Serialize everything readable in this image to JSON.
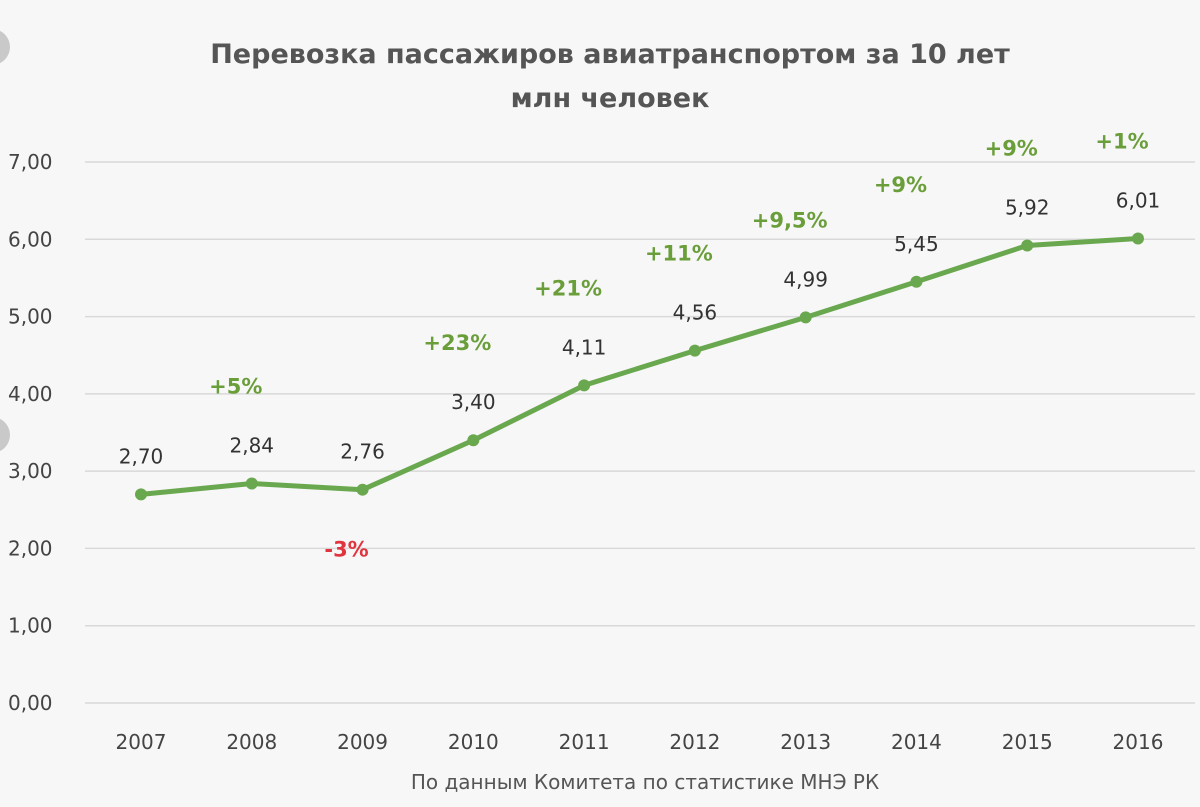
{
  "chart_data": {
    "type": "line",
    "title": "Перевозка пассажиров авиатранспортом за 10 лет",
    "subtitle": "млн человек",
    "xlabel": "",
    "ylabel": "",
    "source": "По данным Комитета по статистике МНЭ РК",
    "categories": [
      "2007",
      "2008",
      "2009",
      "2010",
      "2011",
      "2012",
      "2013",
      "2014",
      "2015",
      "2016"
    ],
    "series": [
      {
        "values": [
          2.7,
          2.84,
          2.76,
          3.4,
          4.11,
          4.56,
          4.99,
          5.45,
          5.92,
          6.01
        ],
        "data_labels": [
          "2,70",
          "2,84",
          "2,76",
          "3,40",
          "4,11",
          "4,56",
          "4,99",
          "5,45",
          "5,92",
          "6,01"
        ]
      }
    ],
    "change_labels": [
      {
        "category": "2008",
        "text": "+5%",
        "color": "#6a9e3a"
      },
      {
        "category": "2009",
        "text": "-3%",
        "color": "#e0343e"
      },
      {
        "category": "2010",
        "text": "+23%",
        "color": "#6a9e3a"
      },
      {
        "category": "2011",
        "text": "+21%",
        "color": "#6a9e3a"
      },
      {
        "category": "2012",
        "text": "+11%",
        "color": "#6a9e3a"
      },
      {
        "category": "2013",
        "text": "+9,5%",
        "color": "#6a9e3a"
      },
      {
        "category": "2014",
        "text": "+9%",
        "color": "#6a9e3a"
      },
      {
        "category": "2015",
        "text": "+9%",
        "color": "#6a9e3a"
      },
      {
        "category": "2016",
        "text": "+1%",
        "color": "#6a9e3a"
      }
    ],
    "y_ticks": [
      0,
      1,
      2,
      3,
      4,
      5,
      6,
      7
    ],
    "y_tick_labels": [
      "0,00",
      "1,00",
      "2,00",
      "3,00",
      "4,00",
      "5,00",
      "6,00",
      "7,00"
    ],
    "ylim": [
      0,
      7
    ],
    "grid": true,
    "legend": "none",
    "colors": {
      "line": "#6aa84f",
      "grid": "#d9d9d9",
      "positive": "#6a9e3a",
      "negative": "#e0343e"
    }
  }
}
